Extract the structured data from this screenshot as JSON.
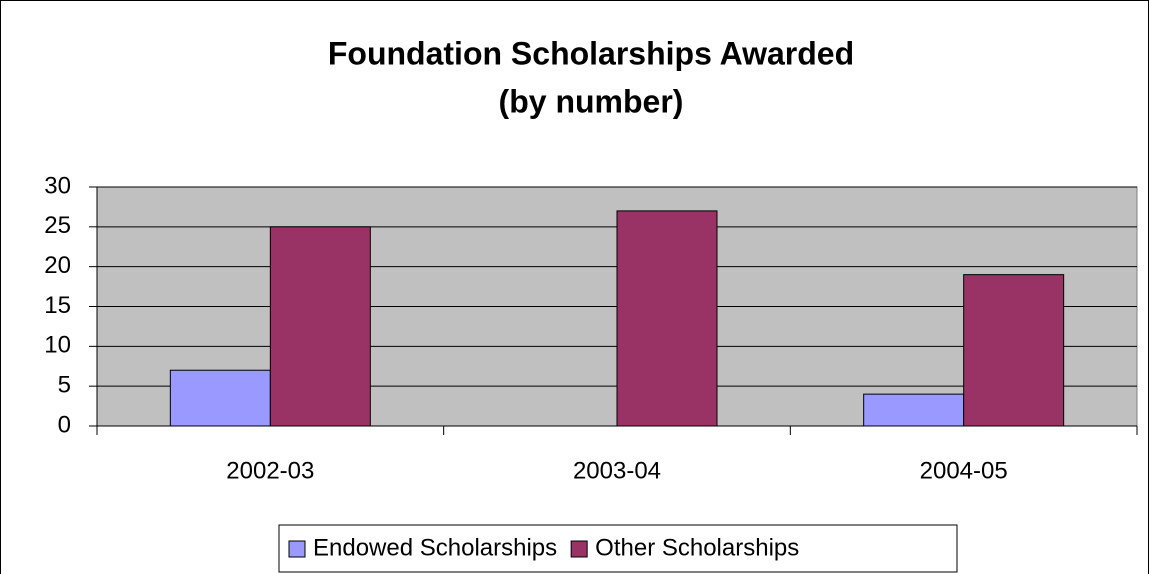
{
  "chart_data": {
    "type": "bar",
    "title": "Foundation Scholarships Awarded",
    "subtitle": "(by number)",
    "categories": [
      "2002-03",
      "2003-04",
      "2004-05"
    ],
    "series": [
      {
        "name": "Endowed Scholarships",
        "color": "#9999ff",
        "values": [
          7,
          0,
          4
        ]
      },
      {
        "name": "Other Scholarships",
        "color": "#993366",
        "values": [
          25,
          27,
          19
        ]
      }
    ],
    "ylim": [
      0,
      30
    ],
    "yticks": [
      0,
      5,
      10,
      15,
      20,
      25,
      30
    ],
    "grid": true,
    "legend": "bottom"
  }
}
